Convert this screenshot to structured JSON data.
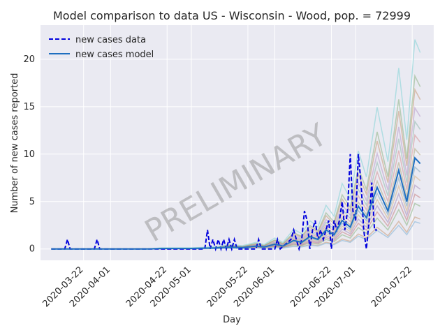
{
  "chart_data": {
    "type": "line",
    "title": "Model comparison to data US - Wisconsin - Wood, pop. = 72999",
    "xlabel": "Day",
    "ylabel": "Number of new cases reported",
    "watermark": "PRELIMINARY",
    "xlim": [
      "2020-03-06",
      "2020-07-30"
    ],
    "ylim": [
      -1.2,
      23.6
    ],
    "x_ticks": [
      "2020-03-22",
      "2020-04-01",
      "2020-04-22",
      "2020-05-01",
      "2020-05-22",
      "2020-06-01",
      "2020-06-22",
      "2020-07-01",
      "2020-07-22"
    ],
    "y_ticks": [
      0,
      5,
      10,
      15,
      20
    ],
    "grid": true,
    "legend_position": "top-left",
    "ensemble_colors": [
      "#c08a5a",
      "#7aa86a",
      "#c06a6a",
      "#9a7ab0",
      "#d0a870",
      "#6a9ab0",
      "#a8a06a",
      "#d08080",
      "#80b0a0",
      "#b08ac0"
    ],
    "series": [
      {
        "name": "new cases data",
        "style": "dashed",
        "color": "#0000dd",
        "points": [
          [
            "2020-03-10",
            0
          ],
          [
            "2020-03-15",
            0
          ],
          [
            "2020-03-16",
            1
          ],
          [
            "2020-03-17",
            0
          ],
          [
            "2020-03-26",
            0
          ],
          [
            "2020-03-27",
            1
          ],
          [
            "2020-03-28",
            0
          ],
          [
            "2020-04-15",
            0
          ],
          [
            "2020-05-01",
            0
          ],
          [
            "2020-05-06",
            0
          ],
          [
            "2020-05-07",
            2
          ],
          [
            "2020-05-08",
            0
          ],
          [
            "2020-05-09",
            1
          ],
          [
            "2020-05-10",
            0
          ],
          [
            "2020-05-11",
            1
          ],
          [
            "2020-05-12",
            0
          ],
          [
            "2020-05-13",
            1
          ],
          [
            "2020-05-14",
            0
          ],
          [
            "2020-05-15",
            1
          ],
          [
            "2020-05-16",
            0
          ],
          [
            "2020-05-17",
            1
          ],
          [
            "2020-05-18",
            0
          ],
          [
            "2020-05-25",
            0
          ],
          [
            "2020-05-26",
            1
          ],
          [
            "2020-05-27",
            0
          ],
          [
            "2020-06-01",
            0
          ],
          [
            "2020-06-02",
            1
          ],
          [
            "2020-06-03",
            0
          ],
          [
            "2020-06-07",
            1
          ],
          [
            "2020-06-08",
            2
          ],
          [
            "2020-06-09",
            1
          ],
          [
            "2020-06-10",
            0
          ],
          [
            "2020-06-11",
            1
          ],
          [
            "2020-06-12",
            4
          ],
          [
            "2020-06-13",
            3
          ],
          [
            "2020-06-14",
            0
          ],
          [
            "2020-06-15",
            2
          ],
          [
            "2020-06-16",
            3
          ],
          [
            "2020-06-17",
            1
          ],
          [
            "2020-06-18",
            2
          ],
          [
            "2020-06-19",
            1
          ],
          [
            "2020-06-20",
            2
          ],
          [
            "2020-06-21",
            3
          ],
          [
            "2020-06-22",
            0
          ],
          [
            "2020-06-23",
            3
          ],
          [
            "2020-06-24",
            2
          ],
          [
            "2020-06-25",
            3
          ],
          [
            "2020-06-26",
            5
          ],
          [
            "2020-06-27",
            2
          ],
          [
            "2020-06-28",
            4
          ],
          [
            "2020-06-29",
            10
          ],
          [
            "2020-06-30",
            4
          ],
          [
            "2020-07-01",
            3
          ],
          [
            "2020-07-02",
            10
          ],
          [
            "2020-07-03",
            7
          ],
          [
            "2020-07-04",
            2
          ],
          [
            "2020-07-05",
            0
          ],
          [
            "2020-07-06",
            3
          ],
          [
            "2020-07-07",
            7
          ],
          [
            "2020-07-08",
            2
          ],
          [
            "2020-07-09",
            2
          ]
        ]
      },
      {
        "name": "new cases model",
        "style": "solid",
        "color": "#1f6fc0",
        "points": [
          [
            "2020-03-10",
            0
          ],
          [
            "2020-04-15",
            0
          ],
          [
            "2020-04-20",
            0.05
          ],
          [
            "2020-05-01",
            0.05
          ],
          [
            "2020-05-10",
            0.1
          ],
          [
            "2020-05-15",
            0.2
          ],
          [
            "2020-05-20",
            0.15
          ],
          [
            "2020-05-25",
            0.3
          ],
          [
            "2020-05-28",
            0.2
          ],
          [
            "2020-06-01",
            0.5
          ],
          [
            "2020-06-04",
            0.3
          ],
          [
            "2020-06-08",
            0.9
          ],
          [
            "2020-06-11",
            0.7
          ],
          [
            "2020-06-14",
            1.3
          ],
          [
            "2020-06-17",
            1.0
          ],
          [
            "2020-06-20",
            2.0
          ],
          [
            "2020-06-23",
            1.5
          ],
          [
            "2020-06-26",
            3.0
          ],
          [
            "2020-06-29",
            2.3
          ],
          [
            "2020-07-02",
            4.5
          ],
          [
            "2020-07-05",
            3.3
          ],
          [
            "2020-07-09",
            6.5
          ],
          [
            "2020-07-13",
            4.0
          ],
          [
            "2020-07-17",
            8.3
          ],
          [
            "2020-07-20",
            5.0
          ],
          [
            "2020-07-23",
            9.6
          ],
          [
            "2020-07-25",
            9.0
          ]
        ]
      }
    ]
  }
}
